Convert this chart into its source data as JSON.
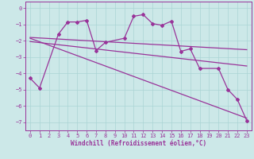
{
  "xlabel": "Windchill (Refroidissement éolien,°C)",
  "bg_color": "#cce8e8",
  "line_color": "#993399",
  "grid_color": "#aad4d4",
  "xlim": [
    -0.5,
    23.5
  ],
  "ylim": [
    -7.5,
    0.4
  ],
  "yticks": [
    0,
    -1,
    -2,
    -3,
    -4,
    -5,
    -6,
    -7
  ],
  "xticks": [
    0,
    1,
    2,
    3,
    4,
    5,
    6,
    7,
    8,
    9,
    10,
    11,
    12,
    13,
    14,
    15,
    16,
    17,
    18,
    19,
    20,
    21,
    22,
    23
  ],
  "jagged_x": [
    0,
    1,
    3,
    4,
    5,
    6,
    7,
    8,
    10,
    11,
    12,
    13,
    14,
    15,
    16,
    17,
    18,
    20,
    21,
    22,
    23
  ],
  "jagged_y": [
    -4.3,
    -4.9,
    -1.6,
    -0.85,
    -0.85,
    -0.75,
    -2.6,
    -2.1,
    -1.85,
    -0.5,
    -0.4,
    -0.95,
    -1.05,
    -0.8,
    -2.65,
    -2.5,
    -3.7,
    -3.7,
    -5.0,
    -5.6,
    -6.9
  ],
  "trend1_x": [
    0,
    23
  ],
  "trend1_y": [
    -1.8,
    -2.55
  ],
  "trend2_x": [
    0,
    23
  ],
  "trend2_y": [
    -2.05,
    -3.55
  ],
  "trend3_x": [
    0,
    23
  ],
  "trend3_y": [
    -1.85,
    -6.75
  ]
}
